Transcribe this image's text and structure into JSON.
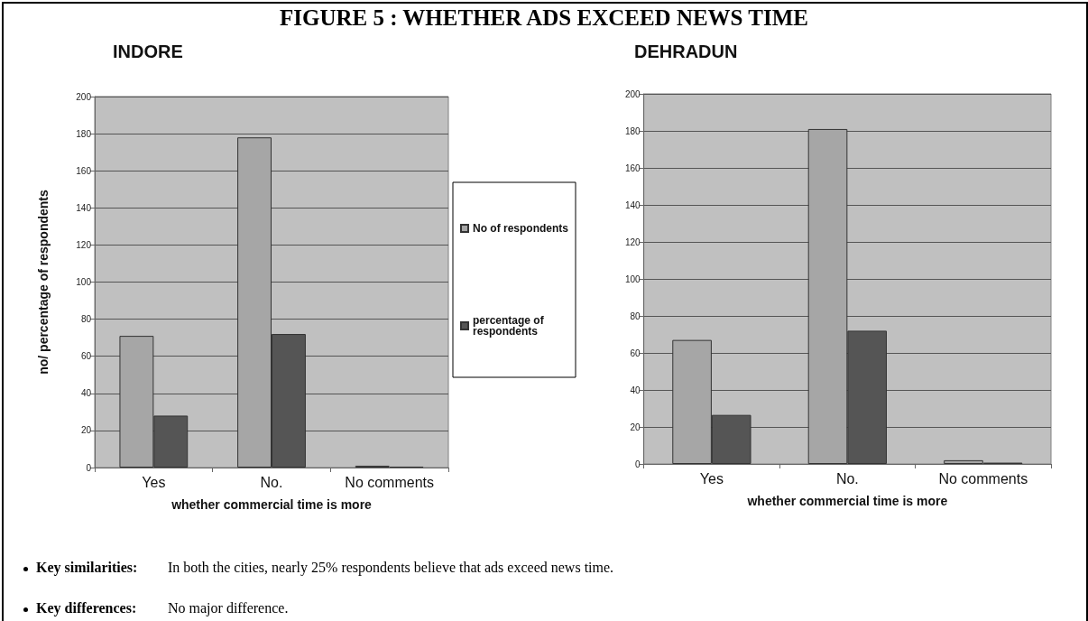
{
  "chart_data": [
    {
      "type": "bar",
      "title": "FIGURE 5 : WHETHER ADS EXCEED NEWS TIME",
      "subtitle": "INDORE",
      "xlabel": "whether commercial time is more",
      "ylabel": "no/ percentage of respondents",
      "categories": [
        "Yes",
        "No.",
        "No comments"
      ],
      "series": [
        {
          "name": "No of respondents",
          "color": "#a6a6a6",
          "values": [
            71,
            178,
            1
          ]
        },
        {
          "name": "percentage of respondents",
          "color": "#555555",
          "values": [
            28,
            72,
            0.5
          ]
        }
      ],
      "ylim": [
        0,
        200
      ],
      "yticks": [
        0,
        20,
        40,
        60,
        80,
        100,
        120,
        140,
        160,
        180,
        200
      ],
      "grid": "y",
      "legend": "right",
      "annotations": [
        "Key similarities: In both the cities, nearly 25% respondents believe that ads exceed news time.",
        "Key differences: No major difference."
      ]
    },
    {
      "type": "bar",
      "title": "DEHRADUN",
      "xlabel": "whether commercial time is more",
      "categories": [
        "Yes",
        "No.",
        "No comments"
      ],
      "series": [
        {
          "color": "#a6a6a6",
          "values": [
            67,
            181,
            2
          ]
        },
        {
          "color": "#555555",
          "values": [
            26.5,
            72,
            0.7
          ]
        }
      ],
      "ylim": [
        0,
        200
      ],
      "yticks": [
        0,
        20,
        40,
        60,
        80,
        100,
        120,
        140,
        160,
        180,
        200
      ],
      "grid": "y",
      "legend": false
    }
  ]
}
